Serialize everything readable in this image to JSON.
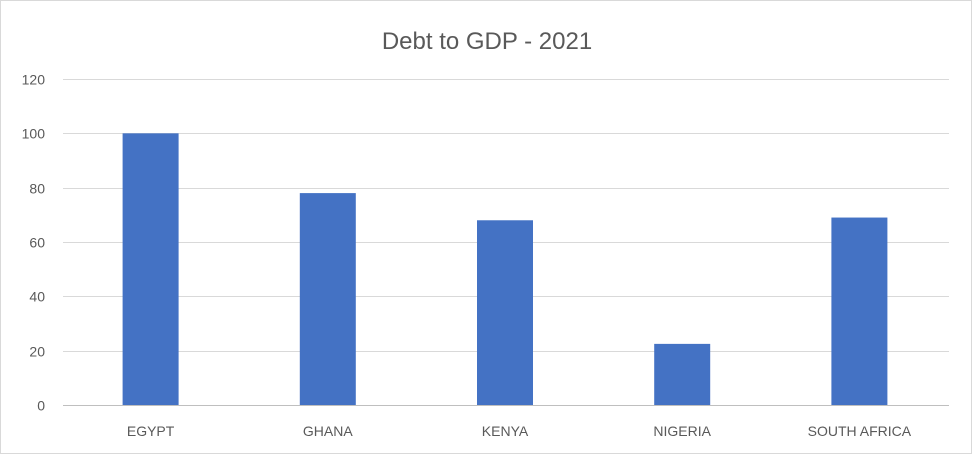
{
  "chart_data": {
    "type": "bar",
    "title": "Debt to GDP - 2021",
    "xlabel": "",
    "ylabel": "",
    "categories": [
      "EGYPT",
      "GHANA",
      "KENYA",
      "NIGERIA",
      "SOUTH AFRICA"
    ],
    "series": [
      {
        "values": [
          100,
          78,
          68,
          22.5,
          69
        ]
      }
    ],
    "ylim": [
      0,
      120
    ],
    "yticks": [
      0,
      20,
      40,
      60,
      80,
      100,
      120
    ],
    "grid": true,
    "legend": "none",
    "bar_color": "#4472C4"
  }
}
